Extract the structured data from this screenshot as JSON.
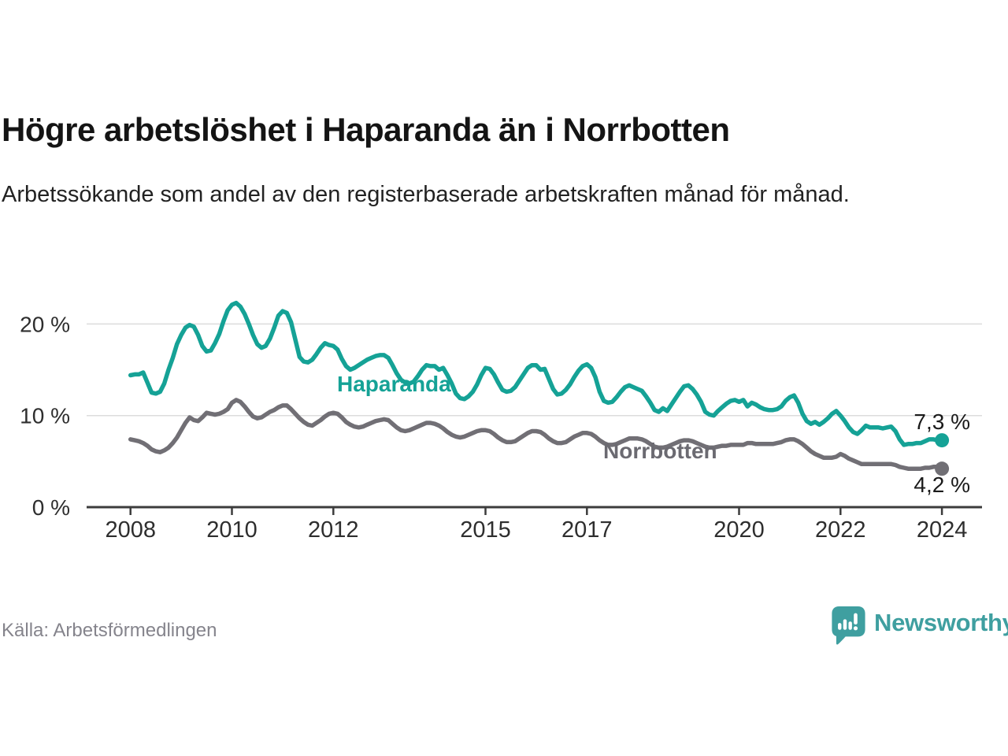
{
  "header": {
    "title": "Högre arbetslöshet i Haparanda än i Norrbotten",
    "subtitle": "Arbetssökande som andel av den registerbaserade arbetskraften månad för månad."
  },
  "footer": {
    "source": "Källa: Arbetsförmedlingen",
    "brand": "Newsworthy"
  },
  "colors": {
    "haparanda_teal": "#15a296",
    "norrbotten_gray": "#716f75",
    "gridline": "#dcdcdc",
    "axis": "#3c3c3c",
    "logo_teal": "#3f9fa0"
  },
  "chart_data": {
    "type": "line",
    "title": "Högre arbetslöshet i Haparanda än i Norrbotten",
    "subtitle": "Arbetssökande som andel av den registerbaserade arbetskraften månad för månad.",
    "x_unit": "month",
    "x_start_year": 2008,
    "x_end_year": 2024,
    "x_ticks": [
      2008,
      2010,
      2012,
      2015,
      2017,
      2020,
      2022,
      2024
    ],
    "y_ticks": [
      {
        "value": 0,
        "label": "0 %"
      },
      {
        "value": 10,
        "label": "10 %"
      },
      {
        "value": 20,
        "label": "20 %"
      }
    ],
    "ylim": [
      0,
      23
    ],
    "grid": "horizontal",
    "legend_position": "inline-labels",
    "series": [
      {
        "name": "Haparanda",
        "color": "#15a296",
        "end_label": "7,3 %",
        "end_value": 7.3,
        "values": [
          14.4,
          14.5,
          14.5,
          14.7,
          13.6,
          12.5,
          12.4,
          12.6,
          13.5,
          15.0,
          16.3,
          17.8,
          18.8,
          19.6,
          19.9,
          19.7,
          18.8,
          17.6,
          17.0,
          17.1,
          17.9,
          18.9,
          20.3,
          21.5,
          22.1,
          22.3,
          21.9,
          21.1,
          20.0,
          18.8,
          17.8,
          17.4,
          17.6,
          18.4,
          19.6,
          20.9,
          21.4,
          21.2,
          20.2,
          18.3,
          16.4,
          15.9,
          15.8,
          16.1,
          16.7,
          17.4,
          17.9,
          17.7,
          17.6,
          17.2,
          16.2,
          15.4,
          15.0,
          15.2,
          15.5,
          15.8,
          16.1,
          16.3,
          16.5,
          16.6,
          16.6,
          16.3,
          15.5,
          14.6,
          13.9,
          13.6,
          13.5,
          13.7,
          14.3,
          15.0,
          15.5,
          15.4,
          15.4,
          15.0,
          15.2,
          14.4,
          13.5,
          12.4,
          11.9,
          11.8,
          12.1,
          12.6,
          13.4,
          14.4,
          15.2,
          15.1,
          14.5,
          13.6,
          12.8,
          12.6,
          12.7,
          13.1,
          13.8,
          14.5,
          15.2,
          15.5,
          15.5,
          15.0,
          15.1,
          14.0,
          12.9,
          12.3,
          12.4,
          12.8,
          13.4,
          14.2,
          14.9,
          15.4,
          15.6,
          15.2,
          14.2,
          12.6,
          11.6,
          11.4,
          11.5,
          12.0,
          12.6,
          13.1,
          13.3,
          13.1,
          12.9,
          12.7,
          12.1,
          11.4,
          10.6,
          10.4,
          10.8,
          10.5,
          11.2,
          11.9,
          12.6,
          13.2,
          13.3,
          12.9,
          12.3,
          11.5,
          10.4,
          10.1,
          10.0,
          10.5,
          10.9,
          11.3,
          11.6,
          11.7,
          11.5,
          11.7,
          11.0,
          11.4,
          11.2,
          10.9,
          10.7,
          10.6,
          10.6,
          10.7,
          11.0,
          11.6,
          12.0,
          12.2,
          11.4,
          10.2,
          9.4,
          9.1,
          9.3,
          9.0,
          9.3,
          9.7,
          10.2,
          10.5,
          10.0,
          9.4,
          8.7,
          8.2,
          8.0,
          8.4,
          8.9,
          8.7,
          8.7,
          8.7,
          8.6,
          8.7,
          8.8,
          8.3,
          7.4,
          6.8,
          6.9,
          6.9,
          7.0,
          7.0,
          7.2,
          7.4,
          7.4,
          7.3,
          7.3
        ]
      },
      {
        "name": "Norrbotten",
        "color": "#716f75",
        "end_label": "4,2 %",
        "end_value": 4.2,
        "values": [
          7.4,
          7.3,
          7.2,
          7.0,
          6.7,
          6.3,
          6.1,
          6.0,
          6.2,
          6.5,
          7.0,
          7.6,
          8.4,
          9.2,
          9.8,
          9.5,
          9.4,
          9.8,
          10.3,
          10.2,
          10.1,
          10.2,
          10.4,
          10.7,
          11.4,
          11.7,
          11.5,
          11.0,
          10.4,
          9.9,
          9.7,
          9.8,
          10.1,
          10.4,
          10.6,
          10.9,
          11.1,
          11.1,
          10.7,
          10.2,
          9.7,
          9.3,
          9.0,
          8.9,
          9.2,
          9.5,
          9.9,
          10.2,
          10.3,
          10.2,
          9.8,
          9.3,
          9.0,
          8.8,
          8.7,
          8.8,
          9.0,
          9.2,
          9.4,
          9.5,
          9.6,
          9.5,
          9.1,
          8.7,
          8.4,
          8.3,
          8.4,
          8.6,
          8.8,
          9.0,
          9.2,
          9.2,
          9.1,
          8.9,
          8.6,
          8.2,
          7.9,
          7.7,
          7.6,
          7.7,
          7.9,
          8.1,
          8.3,
          8.4,
          8.4,
          8.3,
          8.0,
          7.6,
          7.3,
          7.1,
          7.1,
          7.2,
          7.5,
          7.8,
          8.1,
          8.3,
          8.3,
          8.2,
          7.9,
          7.5,
          7.2,
          7.0,
          7.0,
          7.1,
          7.4,
          7.7,
          7.9,
          8.1,
          8.1,
          8.0,
          7.7,
          7.3,
          7.0,
          6.8,
          6.8,
          6.9,
          7.1,
          7.3,
          7.5,
          7.5,
          7.5,
          7.4,
          7.2,
          6.9,
          6.6,
          6.5,
          6.5,
          6.6,
          6.8,
          7.0,
          7.2,
          7.3,
          7.3,
          7.2,
          7.0,
          6.8,
          6.6,
          6.5,
          6.5,
          6.6,
          6.7,
          6.7,
          6.8,
          6.8,
          6.8,
          6.8,
          7.0,
          7.0,
          6.9,
          6.9,
          6.9,
          6.9,
          6.9,
          7.0,
          7.1,
          7.3,
          7.4,
          7.4,
          7.2,
          6.9,
          6.5,
          6.1,
          5.8,
          5.6,
          5.4,
          5.4,
          5.4,
          5.5,
          5.8,
          5.6,
          5.3,
          5.1,
          4.9,
          4.7,
          4.7,
          4.7,
          4.7,
          4.7,
          4.7,
          4.7,
          4.7,
          4.6,
          4.4,
          4.3,
          4.2,
          4.2,
          4.2,
          4.2,
          4.3,
          4.3,
          4.4,
          4.4,
          4.2
        ]
      }
    ]
  }
}
